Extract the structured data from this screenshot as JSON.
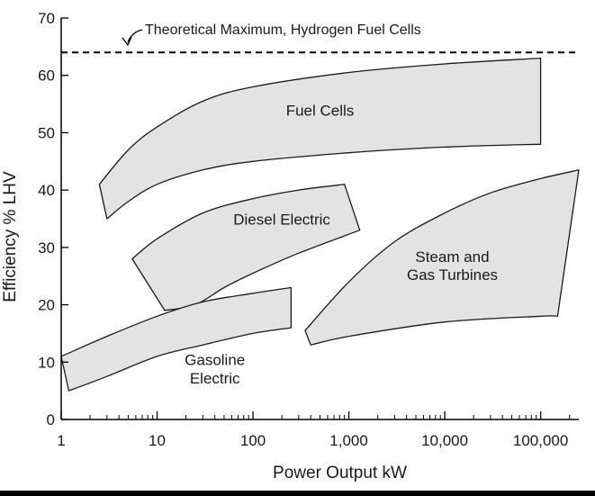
{
  "chart_data": {
    "type": "area",
    "xlabel": "Power Output kW",
    "ylabel": "Efficiency % LHV",
    "x_scale": "log",
    "xlim": [
      1,
      250000
    ],
    "ylim": [
      0,
      70
    ],
    "x_ticks": [
      1,
      10,
      100,
      1000,
      10000,
      100000
    ],
    "x_tick_labels": [
      "1",
      "10",
      "100",
      "1,000",
      "10,000",
      "100,000"
    ],
    "y_ticks": [
      0,
      10,
      20,
      30,
      40,
      50,
      60,
      70
    ],
    "y_tick_labels": [
      "0",
      "10",
      "20",
      "30",
      "40",
      "50",
      "60",
      "70"
    ],
    "grid": false,
    "reference_lines": [
      {
        "label": "Theoretical Maximum, Hydrogen Fuel Cells",
        "y": 64,
        "style": "dashed"
      }
    ],
    "series": [
      {
        "name": "Fuel Cells",
        "label_lines": [
          "Fuel Cells"
        ],
        "label_at": [
          500,
          53
        ],
        "upper": [
          [
            2.5,
            41
          ],
          [
            5,
            47
          ],
          [
            10,
            51
          ],
          [
            30,
            55.5
          ],
          [
            100,
            58
          ],
          [
            1000,
            60.5
          ],
          [
            10000,
            62
          ],
          [
            100000,
            63
          ]
        ],
        "lower": [
          [
            3,
            35
          ],
          [
            5,
            38
          ],
          [
            10,
            41
          ],
          [
            30,
            43.5
          ],
          [
            100,
            45
          ],
          [
            1000,
            46.5
          ],
          [
            10000,
            47.5
          ],
          [
            100000,
            48
          ]
        ]
      },
      {
        "name": "Diesel Electric",
        "label_lines": [
          "Diesel Electric"
        ],
        "label_at": [
          200,
          34
        ],
        "upper": [
          [
            5.5,
            28
          ],
          [
            10,
            31.5
          ],
          [
            30,
            36
          ],
          [
            100,
            38.5
          ],
          [
            300,
            40
          ],
          [
            900,
            41
          ]
        ],
        "lower": [
          [
            12,
            19
          ],
          [
            25,
            20
          ],
          [
            50,
            23
          ],
          [
            100,
            25.5
          ],
          [
            300,
            29
          ],
          [
            1300,
            33
          ]
        ]
      },
      {
        "name": "Gasoline Electric",
        "label_lines": [
          "Gasoline",
          "Electric"
        ],
        "label_at": [
          40,
          9.5
        ],
        "upper": [
          [
            1,
            11
          ],
          [
            3,
            14.5
          ],
          [
            10,
            18
          ],
          [
            30,
            20.5
          ],
          [
            100,
            22
          ],
          [
            250,
            23
          ]
        ],
        "lower": [
          [
            1.2,
            5
          ],
          [
            3,
            7.5
          ],
          [
            10,
            11
          ],
          [
            30,
            13
          ],
          [
            100,
            15
          ],
          [
            250,
            16
          ]
        ]
      },
      {
        "name": "Steam and Gas Turbines",
        "label_lines": [
          "Steam and",
          "Gas Turbines"
        ],
        "label_at": [
          12000,
          27.5
        ],
        "upper": [
          [
            350,
            15.5
          ],
          [
            1000,
            24
          ],
          [
            3000,
            31
          ],
          [
            10000,
            36
          ],
          [
            30000,
            39.5
          ],
          [
            100000,
            42
          ],
          [
            250000,
            43.5
          ]
        ],
        "lower": [
          [
            400,
            13
          ],
          [
            1000,
            14.5
          ],
          [
            10000,
            17
          ],
          [
            100000,
            18
          ],
          [
            150000,
            18
          ]
        ]
      }
    ]
  }
}
